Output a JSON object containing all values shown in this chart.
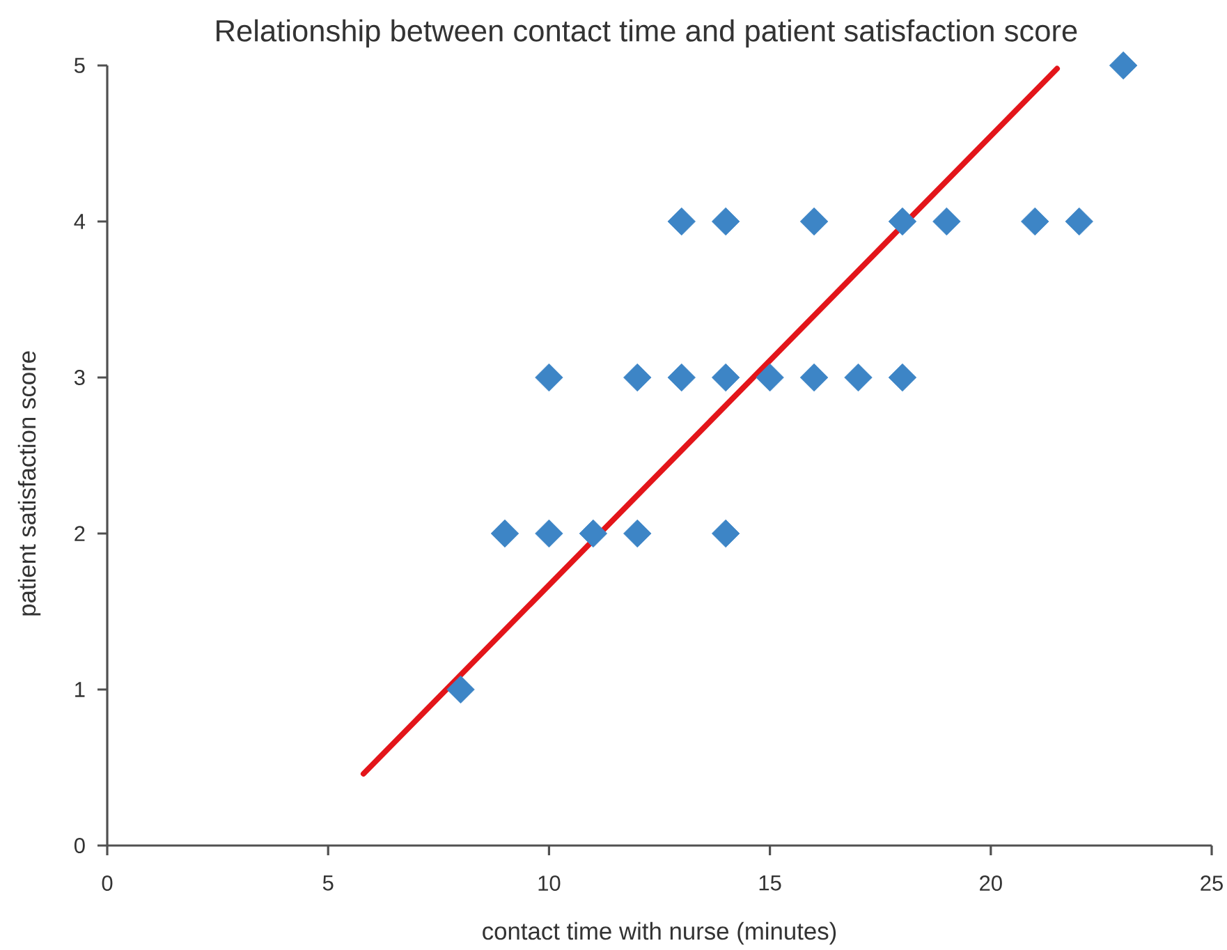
{
  "chart_data": {
    "type": "scatter",
    "title": "Relationship between contact time and patient satisfaction score",
    "xlabel": "contact time with nurse (minutes)",
    "ylabel": "patient satisfaction score",
    "xlim": [
      0,
      25
    ],
    "ylim": [
      0,
      5
    ],
    "xticks": [
      0,
      5,
      10,
      15,
      20,
      25
    ],
    "yticks": [
      0,
      1,
      2,
      3,
      4,
      5
    ],
    "marker": "diamond",
    "series": [
      {
        "color": "#3d85c6",
        "x": [
          8,
          9,
          10,
          10,
          11,
          12,
          12,
          13,
          13,
          14,
          14,
          14,
          15,
          16,
          16,
          17,
          18,
          18,
          19,
          21,
          22,
          23
        ],
        "values": [
          1,
          2,
          2,
          3,
          2,
          2,
          3,
          3,
          4,
          2,
          3,
          4,
          3,
          3,
          4,
          3,
          3,
          4,
          4,
          4,
          4,
          5
        ]
      },
      {
        "type": "line",
        "color": "#e3151a",
        "marker": "none",
        "line_style": "solid",
        "x": [
          5.8,
          21.5
        ],
        "values": [
          0.46,
          4.98
        ]
      }
    ]
  }
}
